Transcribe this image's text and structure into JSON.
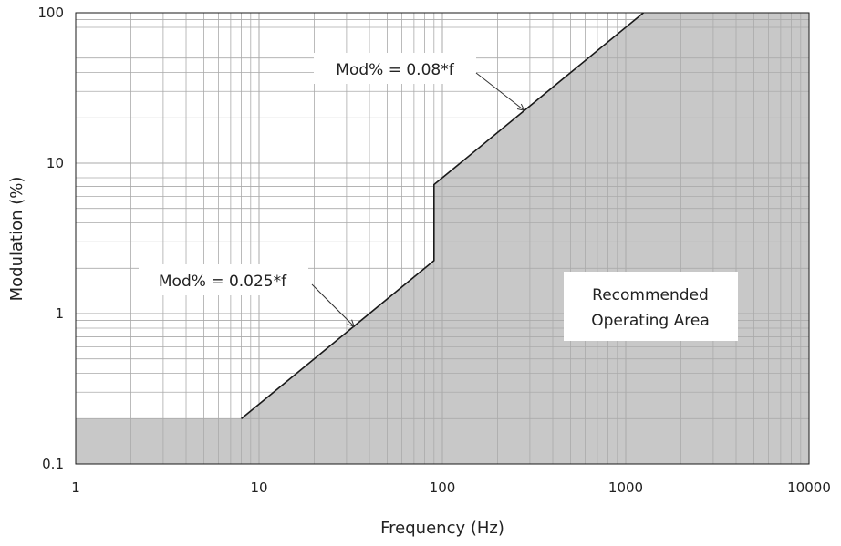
{
  "chart_data": {
    "type": "area",
    "title": "",
    "xlabel": "Frequency (Hz)",
    "ylabel": "Modulation (%)",
    "xscale": "log",
    "yscale": "log",
    "xlim": [
      1,
      10000
    ],
    "ylim": [
      0.1,
      100
    ],
    "grid": true,
    "x_ticks": [
      {
        "value": 1,
        "label": "1"
      },
      {
        "value": 10,
        "label": "10"
      },
      {
        "value": 100,
        "label": "100"
      },
      {
        "value": 1000,
        "label": "1000"
      },
      {
        "value": 10000,
        "label": "10000"
      }
    ],
    "y_ticks": [
      {
        "value": 0.1,
        "label": "0.1"
      },
      {
        "value": 1,
        "label": "1"
      },
      {
        "value": 10,
        "label": "10"
      },
      {
        "value": 100,
        "label": "100"
      }
    ],
    "fill_color": "#c8c8c8",
    "line_color": "#1a1a1a",
    "grid_color": "#aaaaaa",
    "boundary": [
      {
        "x": 1,
        "y": 0.2
      },
      {
        "x": 8,
        "y": 0.2
      },
      {
        "x": 90,
        "y": 2.25
      },
      {
        "x": 90,
        "y": 7.2
      },
      {
        "x": 1250,
        "y": 100
      },
      {
        "x": 10000,
        "y": 100
      }
    ],
    "line_points": [
      {
        "x": 8,
        "y": 0.2
      },
      {
        "x": 90,
        "y": 2.25
      },
      {
        "x": 90,
        "y": 7.2
      },
      {
        "x": 1250,
        "y": 100
      }
    ],
    "annotations": [
      {
        "text": "Mod% = 0.08*f",
        "point": {
          "x": 280,
          "y": 22.4
        }
      },
      {
        "text": "Mod% = 0.025*f",
        "point": {
          "x": 33,
          "y": 0.82
        }
      },
      {
        "text_lines": [
          "Recommended",
          "Operating Area"
        ]
      }
    ]
  }
}
